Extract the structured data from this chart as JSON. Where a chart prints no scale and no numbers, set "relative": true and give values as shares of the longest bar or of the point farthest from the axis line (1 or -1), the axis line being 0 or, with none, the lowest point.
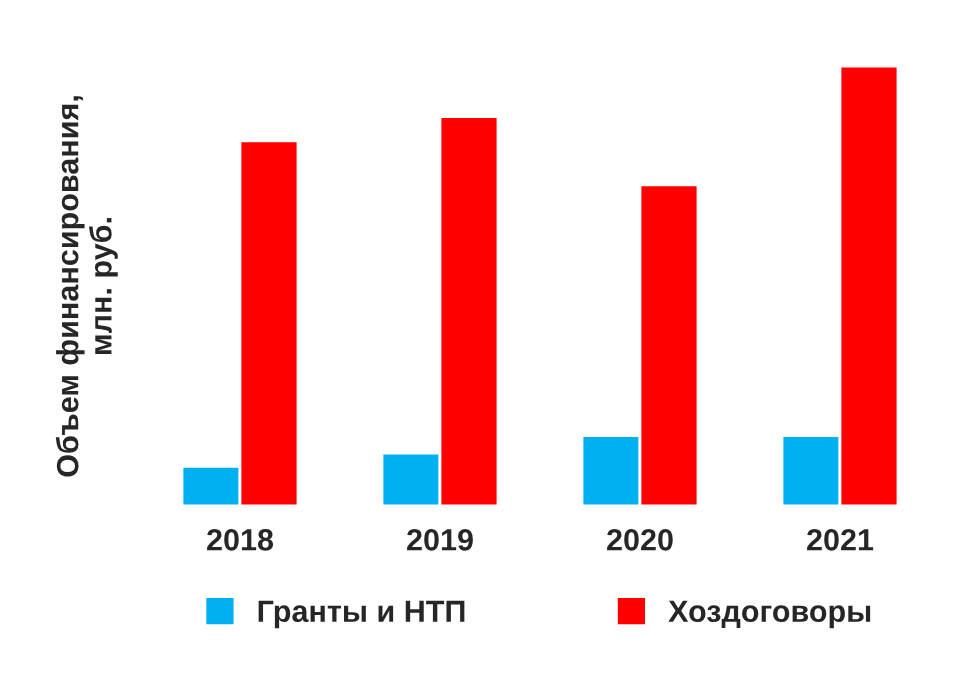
{
  "chart_data": {
    "type": "bar",
    "relative": true,
    "ylabel": "Объем финансирования,\nмлн. руб.",
    "categories": [
      "2018",
      "2019",
      "2020",
      "2021"
    ],
    "series": [
      {
        "name": "Гранты и НТП",
        "color": "#00b0f0",
        "values": [
          0.09,
          0.12,
          0.16,
          0.16
        ]
      },
      {
        "name": "Хоздоговоры",
        "color": "#ff0000",
        "values": [
          0.83,
          0.885,
          0.73,
          1.0
        ]
      }
    ],
    "legend": "bottom",
    "grid": false
  }
}
